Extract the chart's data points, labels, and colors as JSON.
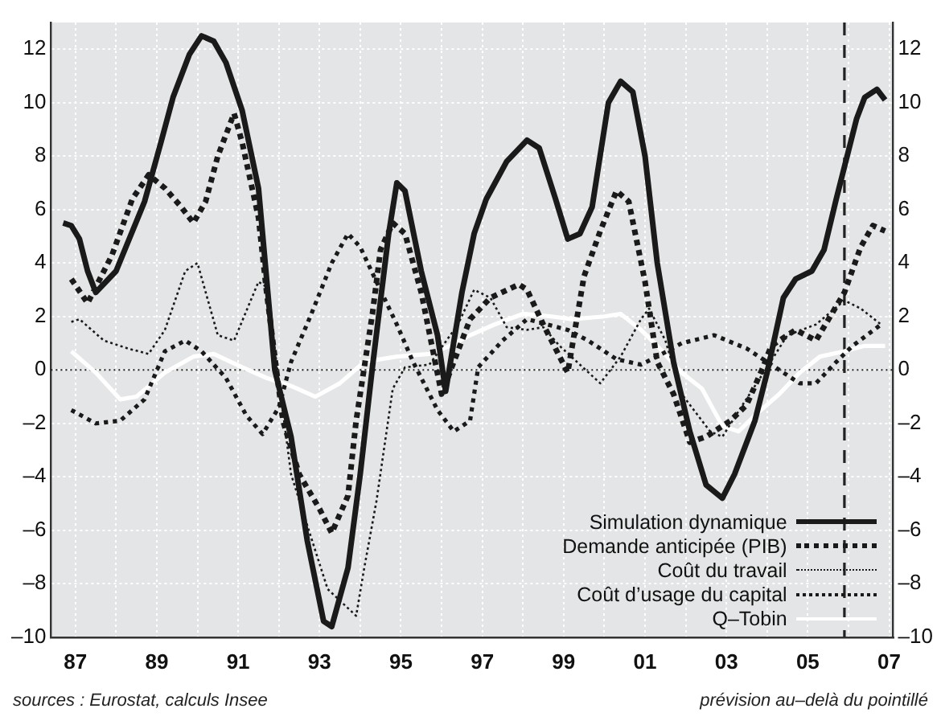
{
  "chart_data": {
    "type": "line",
    "xlim": [
      1986.4,
      2007.1
    ],
    "ylim": [
      -10,
      13
    ],
    "y2lim": [
      -10,
      13
    ],
    "xticks": [
      {
        "value": 1987,
        "label": "87"
      },
      {
        "value": 1988,
        "label": null
      },
      {
        "value": 1989,
        "label": "89"
      },
      {
        "value": 1990,
        "label": null
      },
      {
        "value": 1991,
        "label": "91"
      },
      {
        "value": 1992,
        "label": null
      },
      {
        "value": 1993,
        "label": "93"
      },
      {
        "value": 1994,
        "label": null
      },
      {
        "value": 1995,
        "label": "95"
      },
      {
        "value": 1996,
        "label": null
      },
      {
        "value": 1997,
        "label": "97"
      },
      {
        "value": 1998,
        "label": null
      },
      {
        "value": 1999,
        "label": "99"
      },
      {
        "value": 2000,
        "label": null
      },
      {
        "value": 2001,
        "label": "01"
      },
      {
        "value": 2002,
        "label": null
      },
      {
        "value": 2003,
        "label": "03"
      },
      {
        "value": 2004,
        "label": null
      },
      {
        "value": 2005,
        "label": "05"
      },
      {
        "value": 2006,
        "label": null
      },
      {
        "value": 2007,
        "label": "07"
      }
    ],
    "yticks": [
      {
        "value": -10,
        "label": "–10"
      },
      {
        "value": -8,
        "label": "–8"
      },
      {
        "value": -6,
        "label": "–6"
      },
      {
        "value": -4,
        "label": "–4"
      },
      {
        "value": -2,
        "label": "–2"
      },
      0,
      2,
      4,
      6,
      8,
      10,
      12
    ],
    "y2ticks": [
      {
        "value": -10,
        "label": "–10"
      },
      {
        "value": -8,
        "label": "–8"
      },
      {
        "value": -6,
        "label": "–6"
      },
      {
        "value": -4,
        "label": "–4"
      },
      {
        "value": -2,
        "label": "–2"
      },
      0,
      2,
      4,
      6,
      8,
      10,
      12
    ],
    "grid": true,
    "legend": "bottom right",
    "marker": "none",
    "ref_lines": [
      {
        "axis": "y",
        "value": 0,
        "label": null,
        "color": "#222222",
        "line_style": "dotted"
      },
      {
        "axis": "x",
        "value": 2005.9,
        "label": null,
        "color": "#222222",
        "line_style": "dashed"
      }
    ],
    "annotations": [
      "sources : Eurostat, calculs Insee",
      "prévision au–delà du pointillé"
    ],
    "series": [
      {
        "name": "Simulation dynamique",
        "color": "#1a1a1a",
        "line_style": "solid",
        "x": [
          1986.7,
          1986.9,
          1987.1,
          1987.3,
          1987.5,
          1988.0,
          1988.7,
          1989.1,
          1989.4,
          1989.8,
          1990.1,
          1990.4,
          1990.7,
          1991.1,
          1991.5,
          1991.9,
          1992.3,
          1992.7,
          1993.1,
          1993.3,
          1993.7,
          1994.0,
          1994.3,
          1994.7,
          1994.9,
          1995.1,
          1995.5,
          1995.9,
          1996.1,
          1996.5,
          1996.8,
          1997.1,
          1997.6,
          1998.1,
          1998.4,
          1998.8,
          1999.1,
          1999.4,
          1999.7,
          2000.1,
          2000.4,
          2000.7,
          2001.0,
          2001.3,
          2001.7,
          2002.1,
          2002.5,
          2002.9,
          2003.2,
          2003.7,
          2004.0,
          2004.4,
          2004.7,
          2005.1,
          2005.4,
          2005.7,
          2006.0,
          2006.2,
          2006.4,
          2006.7,
          2006.9
        ],
        "values": [
          5.5,
          5.4,
          4.9,
          3.7,
          2.9,
          3.7,
          6.3,
          8.5,
          10.2,
          11.8,
          12.5,
          12.3,
          11.5,
          9.7,
          6.8,
          0,
          -2.5,
          -6.4,
          -9.4,
          -9.6,
          -7.4,
          -3.9,
          0.1,
          5.1,
          7.0,
          6.7,
          3.7,
          1.3,
          -0.8,
          2.9,
          5.1,
          6.4,
          7.8,
          8.6,
          8.3,
          6.4,
          4.9,
          5.1,
          6.1,
          10.0,
          10.8,
          10.4,
          8.0,
          4.0,
          0.3,
          -2.3,
          -4.3,
          -4.8,
          -3.9,
          -1.9,
          -0.1,
          2.7,
          3.4,
          3.7,
          4.5,
          6.4,
          8.2,
          9.4,
          10.2,
          10.5,
          10.1
        ]
      },
      {
        "name": "Demande anticipée (PIB)",
        "color": "#1a1a1a",
        "line_style": "dotted",
        "x": [
          1986.9,
          1987.3,
          1987.9,
          1988.4,
          1988.8,
          1989.2,
          1989.6,
          1989.9,
          1990.2,
          1990.5,
          1990.9,
          1991.1,
          1991.5,
          1991.7,
          1992.1,
          1992.5,
          1993.0,
          1993.3,
          1993.7,
          1993.9,
          1994.3,
          1994.5,
          1994.8,
          1995.1,
          1995.5,
          1996.0,
          1996.7,
          1997.2,
          1997.9,
          1998.1,
          1998.5,
          1999.1,
          1999.5,
          1999.9,
          2000.3,
          2000.6,
          2001.0,
          2001.3,
          2001.7,
          2002.1,
          2002.5,
          2003.1,
          2003.5,
          2003.9,
          2004.1,
          2004.7,
          2005.2,
          2005.9,
          2006.3,
          2006.6,
          2006.9
        ],
        "values": [
          3.4,
          2.5,
          4.3,
          6.4,
          7.3,
          6.8,
          6.1,
          5.5,
          6.3,
          8.0,
          9.6,
          8.5,
          5.7,
          2.9,
          -1.9,
          -3.9,
          -5.2,
          -6.1,
          -4.7,
          -1.9,
          2.1,
          4.5,
          5.5,
          5.1,
          2.9,
          -0.9,
          1.9,
          2.7,
          3.2,
          3.0,
          1.7,
          -0.1,
          3.5,
          5.2,
          6.7,
          6.3,
          3.3,
          0.3,
          -0.9,
          -2.7,
          -2.5,
          -1.9,
          -1.3,
          0.1,
          0.9,
          1.5,
          1.1,
          2.9,
          4.6,
          5.4,
          5.2
        ]
      },
      {
        "name": "Coût du travail",
        "color": "#1a1a1a",
        "line_style": "dotted",
        "x": [
          1986.9,
          1987.1,
          1987.7,
          1988.3,
          1988.8,
          1989.2,
          1989.7,
          1990.0,
          1990.5,
          1990.9,
          1991.5,
          1991.7,
          1992.3,
          1992.8,
          1993.2,
          1993.9,
          1994.1,
          1994.4,
          1994.8,
          1995.1,
          1995.7,
          1996.4,
          1996.8,
          1997.2,
          1997.6,
          1998.1,
          1998.5,
          1998.9,
          1999.9,
          2000.4,
          2000.9,
          2001.1,
          2001.5,
          2001.9,
          2002.6,
          2002.9,
          2003.4,
          2004.0,
          2004.5,
          2005.2,
          2005.9,
          2006.3,
          2006.8
        ],
        "values": [
          1.8,
          1.9,
          1.1,
          0.8,
          0.6,
          1.5,
          3.7,
          4.0,
          1.3,
          1.1,
          3.3,
          3.1,
          -3.9,
          -6.3,
          -8.2,
          -9.2,
          -7.4,
          -4.9,
          -0.7,
          0.1,
          0.2,
          1.7,
          3.0,
          2.7,
          1.6,
          1.5,
          1.6,
          0.9,
          -0.5,
          0.5,
          1.9,
          2.3,
          1.1,
          -0.9,
          -2.3,
          -2.5,
          -1.3,
          0.1,
          1.3,
          1.7,
          2.6,
          2.3,
          1.7
        ]
      },
      {
        "name": "Coût d’usage du capital",
        "color": "#1a1a1a",
        "line_style": "dotted",
        "x": [
          1986.9,
          1987.5,
          1988.1,
          1988.7,
          1989.2,
          1989.7,
          1990.1,
          1990.7,
          1991.2,
          1991.6,
          1992.0,
          1992.3,
          1992.8,
          1993.3,
          1993.7,
          1994.0,
          1994.4,
          1994.9,
          1995.3,
          1995.9,
          1996.3,
          1996.7,
          1996.9,
          1997.5,
          1998.1,
          1999.1,
          1999.6,
          2000.3,
          2000.9,
          2001.3,
          2001.9,
          2002.7,
          2003.5,
          2004.0,
          2004.8,
          2005.2,
          2005.7,
          2006.1,
          2006.8
        ],
        "values": [
          -1.5,
          -2.0,
          -1.9,
          -1.1,
          0.7,
          1.1,
          0.7,
          -0.3,
          -1.7,
          -2.4,
          -1.4,
          0.3,
          2.1,
          4.0,
          5.1,
          4.6,
          3.3,
          1.7,
          0.3,
          -1.5,
          -2.3,
          -1.9,
          0.1,
          1.1,
          1.9,
          1.5,
          1.1,
          0.4,
          0.2,
          0.5,
          1.0,
          1.3,
          0.8,
          0.3,
          -0.5,
          -0.5,
          0.3,
          0.9,
          1.7
        ]
      },
      {
        "name": "Q–Tobin",
        "color": "#ffffff",
        "line_style": "solid",
        "x": [
          1986.9,
          1987.5,
          1988.1,
          1988.5,
          1989.2,
          1989.9,
          1990.4,
          1991.1,
          1991.7,
          1992.3,
          1992.9,
          1993.5,
          1994.1,
          1994.9,
          1995.7,
          1996.2,
          1996.7,
          1997.3,
          1998.0,
          1998.7,
          1999.2,
          2000.0,
          2000.4,
          2000.9,
          2001.3,
          2001.9,
          2002.4,
          2002.9,
          2003.3,
          2003.7,
          2004.3,
          2004.8,
          2005.3,
          2005.9,
          2006.4,
          2006.9
        ],
        "values": [
          0.7,
          -0.1,
          -1.1,
          -1.0,
          -0.1,
          0.5,
          0.6,
          0.1,
          -0.3,
          -0.6,
          -1.0,
          -0.5,
          0.3,
          0.5,
          0.6,
          0.9,
          1.3,
          1.7,
          2.1,
          2.0,
          1.9,
          2.0,
          2.1,
          1.5,
          0.9,
          -0.1,
          -0.7,
          -2.1,
          -2.3,
          -1.7,
          -0.9,
          -0.1,
          0.5,
          0.7,
          0.9,
          0.9
        ]
      }
    ]
  }
}
